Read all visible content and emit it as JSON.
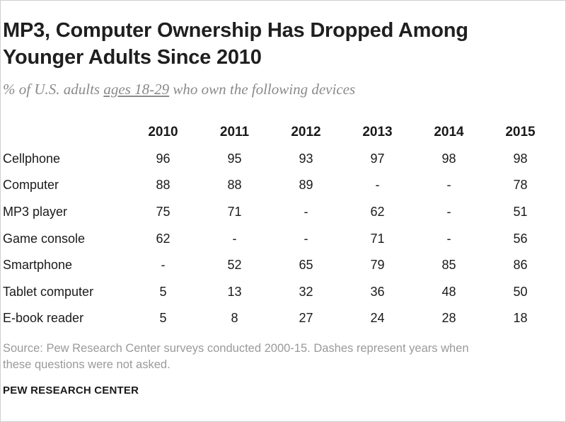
{
  "title": "MP3, Computer Ownership Has Dropped Among Younger Adults Since 2010",
  "subtitle": {
    "before": "% of U.S. adults ",
    "underlined": "ages 18-29",
    "after": " who own the following devices"
  },
  "source": "Source: Pew Research Center surveys conducted 2000-15. Dashes represent years when these questions were not asked.",
  "brand": "PEW RESEARCH CENTER",
  "chart_data": {
    "type": "table",
    "title": "MP3, Computer Ownership Has Dropped Among Younger Adults Since 2010",
    "subtitle": "% of U.S. adults ages 18-29 who own the following devices",
    "columns": [
      "2010",
      "2011",
      "2012",
      "2013",
      "2014",
      "2015"
    ],
    "rows": [
      {
        "label": "Cellphone",
        "values": [
          "96",
          "95",
          "93",
          "97",
          "98",
          "98"
        ]
      },
      {
        "label": "Computer",
        "values": [
          "88",
          "88",
          "89",
          "-",
          "-",
          "78"
        ]
      },
      {
        "label": "MP3 player",
        "values": [
          "75",
          "71",
          "-",
          "62",
          "-",
          "51"
        ]
      },
      {
        "label": "Game console",
        "values": [
          "62",
          "-",
          "-",
          "71",
          "-",
          "56"
        ]
      },
      {
        "label": "Smartphone",
        "values": [
          "-",
          "52",
          "65",
          "79",
          "85",
          "86"
        ]
      },
      {
        "label": "Tablet computer",
        "values": [
          "5",
          "13",
          "32",
          "36",
          "48",
          "50"
        ]
      },
      {
        "label": "E-book reader",
        "values": [
          "5",
          "8",
          "27",
          "24",
          "28",
          "18"
        ]
      }
    ]
  }
}
